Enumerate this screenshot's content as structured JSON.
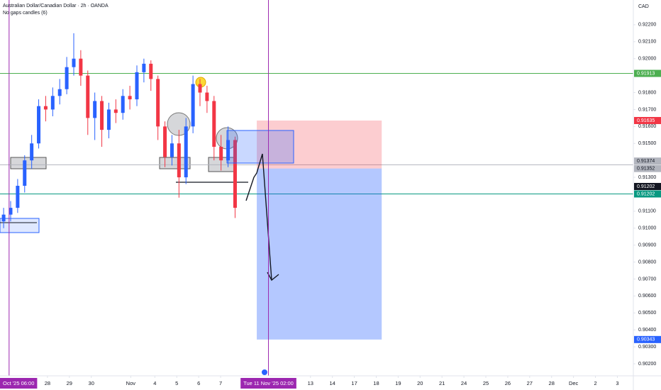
{
  "chart_data": {
    "type": "candlestick",
    "title": "Australian Dollar/Canadian Dollar · 2h · OANDA",
    "subtitle": "No gaps candles (6)",
    "currency": "CAD",
    "x": [
      -1.0,
      -0.68,
      -0.36,
      -0.04,
      0.28,
      0.6,
      0.92,
      1.24,
      1.56,
      1.88,
      2.2,
      2.52,
      2.84,
      3.16,
      3.48,
      3.8,
      4.12,
      4.44,
      4.76,
      5.08,
      5.4,
      5.72,
      6.04,
      6.36,
      6.68,
      7.0,
      7.32,
      7.64,
      7.96,
      8.28,
      8.6,
      8.92,
      9.24,
      9.56
    ],
    "open": [
      0.9104,
      0.9108,
      0.9112,
      0.9125,
      0.914,
      0.915,
      0.9172,
      0.917,
      0.9178,
      0.9182,
      0.9195,
      0.92,
      0.919,
      0.9165,
      0.9175,
      0.9158,
      0.917,
      0.9168,
      0.9178,
      0.9176,
      0.9192,
      0.9197,
      0.9188,
      0.916,
      0.9142,
      0.915,
      0.913,
      0.916,
      0.9185,
      0.918,
      0.9175,
      0.9148,
      0.914,
      0.9152
    ],
    "high": [
      0.9112,
      0.9116,
      0.9129,
      0.9143,
      0.9155,
      0.9176,
      0.9178,
      0.9183,
      0.9188,
      0.9201,
      0.9215,
      0.9205,
      0.9193,
      0.918,
      0.9178,
      0.9174,
      0.9176,
      0.9182,
      0.9184,
      0.9196,
      0.92,
      0.9199,
      0.919,
      0.9163,
      0.9155,
      0.9158,
      0.9165,
      0.919,
      0.9188,
      0.9184,
      0.9178,
      0.9155,
      0.916,
      0.9154
    ],
    "low": [
      0.91,
      0.9104,
      0.9109,
      0.9121,
      0.9135,
      0.9147,
      0.9163,
      0.9166,
      0.9173,
      0.9179,
      0.919,
      0.9184,
      0.9155,
      0.9152,
      0.9148,
      0.9153,
      0.9162,
      0.9164,
      0.917,
      0.9172,
      0.9186,
      0.9181,
      0.9152,
      0.9136,
      0.9137,
      0.9118,
      0.9126,
      0.9156,
      0.9172,
      0.9168,
      0.914,
      0.9134,
      0.9136,
      0.9106
    ],
    "close": [
      0.9108,
      0.9112,
      0.9125,
      0.914,
      0.915,
      0.9172,
      0.917,
      0.9178,
      0.9182,
      0.9195,
      0.92,
      0.919,
      0.9165,
      0.9175,
      0.9158,
      0.917,
      0.9168,
      0.9178,
      0.9176,
      0.9192,
      0.9197,
      0.9188,
      0.916,
      0.9142,
      0.915,
      0.913,
      0.916,
      0.9185,
      0.918,
      0.9175,
      0.9148,
      0.914,
      0.9152,
      0.9112
    ],
    "up_color": "#2962ff",
    "down_color": "#f23645",
    "xlim": [
      -1.165,
      27.73
    ],
    "ylim": [
      0.90129,
      0.92346
    ],
    "grid": false,
    "xticks": [
      {
        "value": 1,
        "label": "28"
      },
      {
        "value": 2,
        "label": "29"
      },
      {
        "value": 3,
        "label": "30"
      },
      {
        "value": 4.8,
        "label": "Nov"
      },
      {
        "value": 5.9,
        "label": "4"
      },
      {
        "value": 6.9,
        "label": "5"
      },
      {
        "value": 7.9,
        "label": "6"
      },
      {
        "value": 8.9,
        "label": "7"
      },
      {
        "value": 13,
        "label": "13"
      },
      {
        "value": 14,
        "label": "14"
      },
      {
        "value": 15,
        "label": "17"
      },
      {
        "value": 16,
        "label": "18"
      },
      {
        "value": 17,
        "label": "19"
      },
      {
        "value": 18,
        "label": "20"
      },
      {
        "value": 19,
        "label": "21"
      },
      {
        "value": 20,
        "label": "24"
      },
      {
        "value": 21,
        "label": "25"
      },
      {
        "value": 22,
        "label": "26"
      },
      {
        "value": 23,
        "label": "27"
      },
      {
        "value": 24,
        "label": "28"
      },
      {
        "value": 25,
        "label": "Dec"
      },
      {
        "value": 26,
        "label": "2"
      },
      {
        "value": 27,
        "label": "3"
      }
    ],
    "yticks": [
      {
        "value": 0.922,
        "label": "0.92200"
      },
      {
        "value": 0.921,
        "label": "0.92100"
      },
      {
        "value": 0.92,
        "label": "0.92000"
      },
      {
        "value": 0.918,
        "label": "0.91800"
      },
      {
        "value": 0.917,
        "label": "0.91700"
      },
      {
        "value": 0.916,
        "label": "0.91600"
      },
      {
        "value": 0.915,
        "label": "0.91500"
      },
      {
        "value": 0.913,
        "label": "0.91300"
      },
      {
        "value": 0.911,
        "label": "0.91100"
      },
      {
        "value": 0.91,
        "label": "0.91000"
      },
      {
        "value": 0.909,
        "label": "0.90900"
      },
      {
        "value": 0.908,
        "label": "0.90800"
      },
      {
        "value": 0.907,
        "label": "0.90700"
      },
      {
        "value": 0.906,
        "label": "0.90600"
      },
      {
        "value": 0.905,
        "label": "0.90500"
      },
      {
        "value": 0.904,
        "label": "0.90400"
      },
      {
        "value": 0.903,
        "label": "0.90300"
      },
      {
        "value": 0.902,
        "label": "0.90200"
      }
    ],
    "vlines": [
      {
        "value": -0.75,
        "label": "Oct '25  06:00",
        "color": "#9c27b0"
      },
      {
        "value": 11.0833,
        "label": "Tue 11 Nov '25  02:00",
        "color": "#9c27b0"
      }
    ],
    "position": {
      "x": [
        10.55,
        16.25
      ],
      "entry": 0.91352,
      "stop": 0.91635,
      "target": 0.90343,
      "entry_color": "#b2b5be",
      "stop_color": "#f23645",
      "target_color": "#2962ff"
    },
    "price_levels": [
      {
        "value": 0.91913,
        "color": "#4caf50",
        "line": true
      },
      {
        "value": 0.91374,
        "color": "#b2b5be",
        "line": true
      },
      {
        "value": 0.91202,
        "color": "#089981",
        "line": true
      },
      {
        "value": 0.91202,
        "color": "#131722",
        "line": false
      }
    ]
  }
}
